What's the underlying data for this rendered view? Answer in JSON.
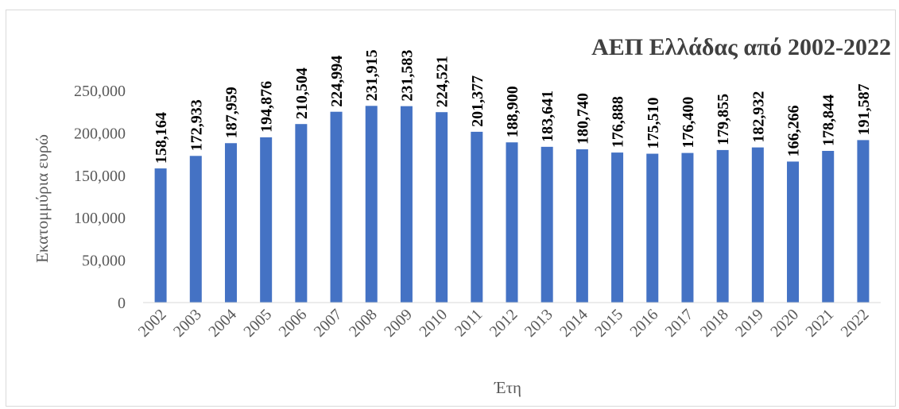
{
  "chart_data": {
    "type": "bar",
    "title": "ΑΕΠ Ελλάδας από 2002-2022",
    "xlabel": "Έτη",
    "ylabel": "Εκατομμύρια ευρώ",
    "categories": [
      "2002",
      "2003",
      "2004",
      "2005",
      "2006",
      "2007",
      "2008",
      "2009",
      "2010",
      "2011",
      "2012",
      "2013",
      "2014",
      "2015",
      "2016",
      "2017",
      "2018",
      "2019",
      "2020",
      "2021",
      "2022"
    ],
    "values": [
      158164,
      172933,
      187959,
      194876,
      210504,
      224994,
      231915,
      231583,
      224521,
      201377,
      188900,
      183641,
      180740,
      176888,
      175510,
      176400,
      179855,
      182932,
      166266,
      178844,
      191587
    ],
    "value_labels": [
      "158,164",
      "172,933",
      "187,959",
      "194,876",
      "210,504",
      "224,994",
      "231,915",
      "231,583",
      "224,521",
      "201,377",
      "188,900",
      "183,641",
      "180,740",
      "176,888",
      "175,510",
      "176,400",
      "179,855",
      "182,932",
      "166,266",
      "178,844",
      "191,587"
    ],
    "yticks": [
      0,
      50000,
      100000,
      150000,
      200000,
      250000
    ],
    "ytick_labels": [
      "0",
      "50,000",
      "100,000",
      "150,000",
      "200,000",
      "250,000"
    ],
    "ylim": [
      0,
      250000
    ],
    "grid": false,
    "legend": "none",
    "bar_color": "#4472c4"
  }
}
